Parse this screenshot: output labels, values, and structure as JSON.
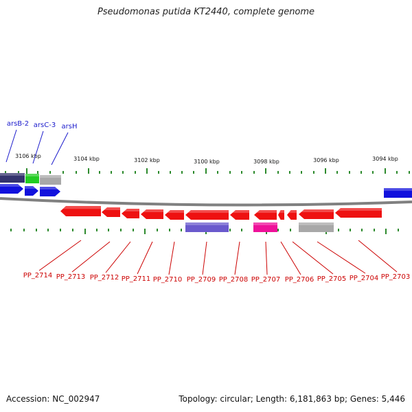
{
  "title": "Pseudomonas putida KT2440, complete genome",
  "footer": {
    "accession": "Accession: NC_002947",
    "summary": "Topology: circular; Length: 6,181,863 bp; Genes: 5,446"
  },
  "colors": {
    "backbone": "#808080",
    "tick": "#2d8a2d",
    "upper_label": "#1a1acc",
    "lower_label": "#cc0000",
    "red_gene": "#ee1111",
    "blue_gene": "#1111dd",
    "dark_blue_gene": "#33336e",
    "green_gene": "#22cc22",
    "grey_gene": "#a8a8a8",
    "purple_gene": "#6a5acd",
    "pink_gene": "#ee1199"
  },
  "kbp_labels": [
    "3106 kbp",
    "3104 kbp",
    "3102 kbp",
    "3100 kbp",
    "3098 kbp",
    "3096 kbp",
    "3094 kbp"
  ],
  "upper_gene_labels": [
    "arsB-2",
    "arsC-3",
    "arsH"
  ],
  "lower_gene_labels": [
    "PP_2714",
    "PP_2713",
    "PP_2712",
    "PP_2711",
    "PP_2710",
    "PP_2709",
    "PP_2708",
    "PP_2707",
    "PP_2706",
    "PP_2705",
    "PP_2704",
    "PP_2703"
  ]
}
